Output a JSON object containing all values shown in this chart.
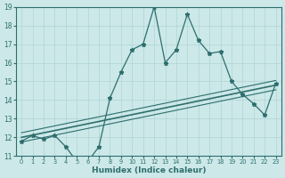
{
  "xlabel": "Humidex (Indice chaleur)",
  "x_values": [
    0,
    1,
    2,
    3,
    4,
    5,
    6,
    7,
    8,
    9,
    10,
    11,
    12,
    13,
    14,
    15,
    16,
    17,
    18,
    19,
    20,
    21,
    22,
    23
  ],
  "y_main": [
    11.8,
    12.1,
    11.9,
    12.1,
    11.5,
    10.7,
    10.7,
    11.5,
    14.1,
    15.5,
    16.7,
    17.0,
    19.0,
    16.0,
    16.7,
    18.6,
    17.2,
    16.5,
    16.6,
    15.0,
    14.3,
    13.8,
    13.2,
    14.9
  ],
  "trend_start": 12.0,
  "trend_end": 14.8,
  "trend_upper_start": 12.25,
  "trend_upper_end": 15.05,
  "trend_lower_start": 11.75,
  "trend_lower_end": 14.55,
  "line_color": "#2e6e6e",
  "bg_color": "#cce8e8",
  "grid_color": "#b0d4d4",
  "ylim": [
    11,
    19
  ],
  "xlim": [
    0,
    23
  ],
  "yticks": [
    11,
    12,
    13,
    14,
    15,
    16,
    17,
    18,
    19
  ],
  "xticks": [
    0,
    1,
    2,
    3,
    4,
    5,
    6,
    7,
    8,
    9,
    10,
    11,
    12,
    13,
    14,
    15,
    16,
    17,
    18,
    19,
    20,
    21,
    22,
    23
  ]
}
